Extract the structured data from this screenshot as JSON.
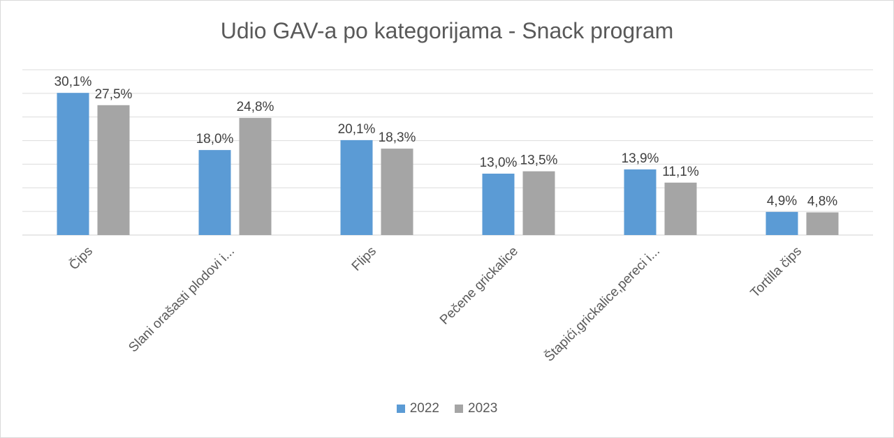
{
  "chart_data": {
    "type": "bar",
    "title": "Udio GAV-a po kategorijama - Snack program",
    "xlabel": "",
    "ylabel": "",
    "categories": [
      "Čips",
      "Slani orašasti plodovi i...",
      "Flips",
      "Pečene grickalice",
      "Štapići,grickalice,pereci i...",
      "Tortilla čips"
    ],
    "series": [
      {
        "name": "2022",
        "color": "#5b9bd5",
        "values": [
          30.1,
          18.0,
          20.1,
          13.0,
          13.9,
          4.9
        ],
        "labels": [
          "30,1%",
          "18,0%",
          "20,1%",
          "13,0%",
          "13,9%",
          "4,9%"
        ]
      },
      {
        "name": "2023",
        "color": "#a5a5a5",
        "values": [
          27.5,
          24.8,
          18.3,
          13.5,
          11.1,
          4.8
        ],
        "labels": [
          "27,5%",
          "24,8%",
          "18,3%",
          "13,5%",
          "11,1%",
          "4,8%"
        ]
      }
    ],
    "ylim": [
      0,
      35
    ],
    "grid": true,
    "y_tick_labels_visible": false,
    "legend": "bottom-center"
  }
}
